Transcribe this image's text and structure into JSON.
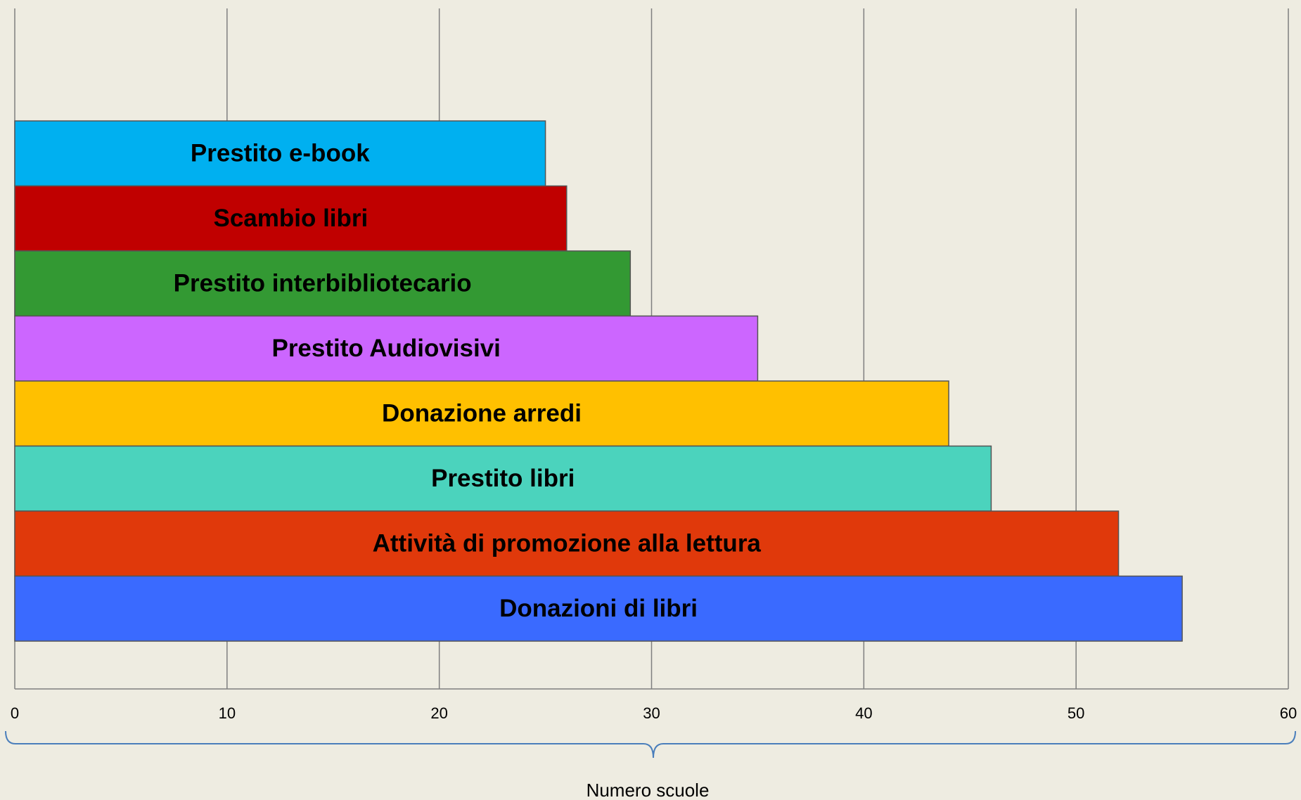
{
  "chart_data": {
    "type": "bar",
    "orientation": "horizontal",
    "categories": [
      "Prestito e-book",
      "Scambio libri",
      "Prestito interbibliotecario",
      "Prestito Audiovisivi",
      "Donazione arredi",
      "Prestito libri",
      "Attività di promozione alla lettura",
      "Donazioni  di libri"
    ],
    "values": [
      25,
      26,
      29,
      35,
      44,
      46,
      52,
      55
    ],
    "colors": [
      "#00b0f0",
      "#c00000",
      "#339933",
      "#cc66ff",
      "#ffc000",
      "#4bd3bd",
      "#e0390b",
      "#3a6aff"
    ],
    "xlabel": "Numero scuole",
    "xlim": [
      0,
      60
    ],
    "xticks": [
      0,
      10,
      20,
      30,
      40,
      50,
      60
    ],
    "grid": true
  }
}
